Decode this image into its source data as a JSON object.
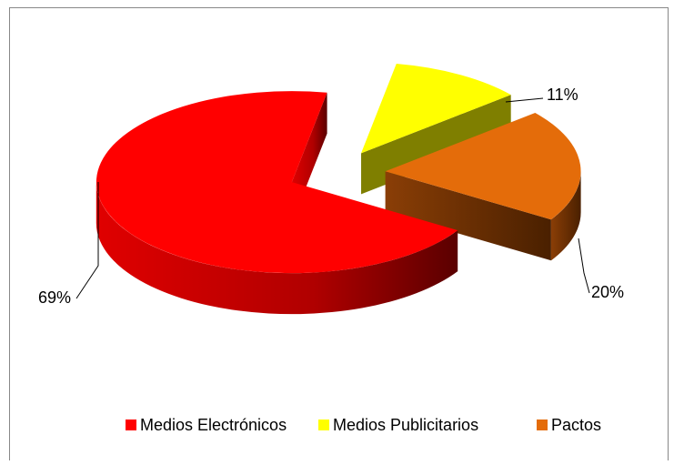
{
  "chart_data": {
    "type": "pie",
    "three_d": true,
    "exploded": true,
    "categories": [
      "Medios Electrónicos",
      "Medios Publicitarios",
      "Pactos"
    ],
    "values": [
      69,
      11,
      20
    ],
    "value_labels": [
      "69%",
      "11%",
      "20%"
    ],
    "colors": [
      "#ff0000",
      "#ffff00",
      "#e46c0a"
    ],
    "legend": "bottom"
  }
}
